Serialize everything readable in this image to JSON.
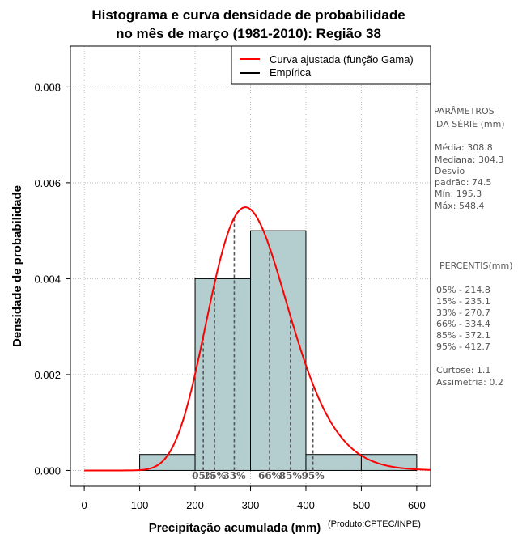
{
  "chart_data": {
    "type": "histogram",
    "title": [
      "Histograma e curva densidade de probabilidade",
      "no mês de março (1981-2010): Região 38"
    ],
    "xlabel": "Precipitação acumulada (mm)",
    "ylabel": "Densidade de probabilidade",
    "credit": "(Produto:CPTEC/INPE)",
    "xlim": [
      -25,
      625
    ],
    "ylim": [
      -0.00033,
      0.00885
    ],
    "xticks": [
      0,
      100,
      200,
      300,
      400,
      500,
      600
    ],
    "yticks": [
      0.0,
      0.002,
      0.004,
      0.006,
      0.008
    ],
    "xtick_labels": [
      "0",
      "100",
      "200",
      "300",
      "400",
      "500",
      "600"
    ],
    "ytick_labels": [
      "0.000",
      "0.002",
      "0.004",
      "0.006",
      "0.008"
    ],
    "grid": true,
    "bins": [
      {
        "from": 100,
        "to": 200,
        "density": 0.000333
      },
      {
        "from": 200,
        "to": 300,
        "density": 0.004
      },
      {
        "from": 300,
        "to": 400,
        "density": 0.005
      },
      {
        "from": 400,
        "to": 500,
        "density": 0.000333
      },
      {
        "from": 500,
        "to": 600,
        "density": 0.000333
      }
    ],
    "bar_color": "#b4ced0",
    "curve": {
      "name": "Curva ajustada (função Gama)",
      "distribution": "gamma",
      "mean": 308.8,
      "sd": 74.5,
      "xmax_drawn": 625,
      "color": "#ff0000"
    },
    "empirical": {
      "name": "Empírica",
      "color": "#000000"
    },
    "legend": {
      "position": "top-right",
      "entries": [
        {
          "label": "Curva ajustada (função Gama)",
          "color": "#ff0000"
        },
        {
          "label": "Empírica",
          "color": "#000000"
        }
      ]
    },
    "percentile_lines": [
      {
        "label": "05%",
        "value": 214.8
      },
      {
        "label": "15%",
        "value": 235.1
      },
      {
        "label": "33%",
        "value": 270.7
      },
      {
        "label": "66%",
        "value": 334.4
      },
      {
        "label": "85%",
        "value": 372.1
      },
      {
        "label": "95%",
        "value": 412.7
      }
    ]
  },
  "side_panel": {
    "params_title": [
      "PARÂMETROS",
      "DA SÉRIE (mm)"
    ],
    "params": [
      "Média:  308.8",
      "Mediana:  304.3",
      "Desvio",
      "padrão:  74.5",
      "Mín:  195.3",
      "Máx:  548.4"
    ],
    "percentis_title": "PERCENTIS(mm)",
    "percentis": [
      "05% -  214.8",
      "15% -  235.1",
      "33% -  270.7",
      "66% -  334.4",
      "85% -  372.1",
      "95% -  412.7"
    ],
    "stats": [
      "Curtose:  1.1",
      "Assimetria:  0.2"
    ]
  }
}
